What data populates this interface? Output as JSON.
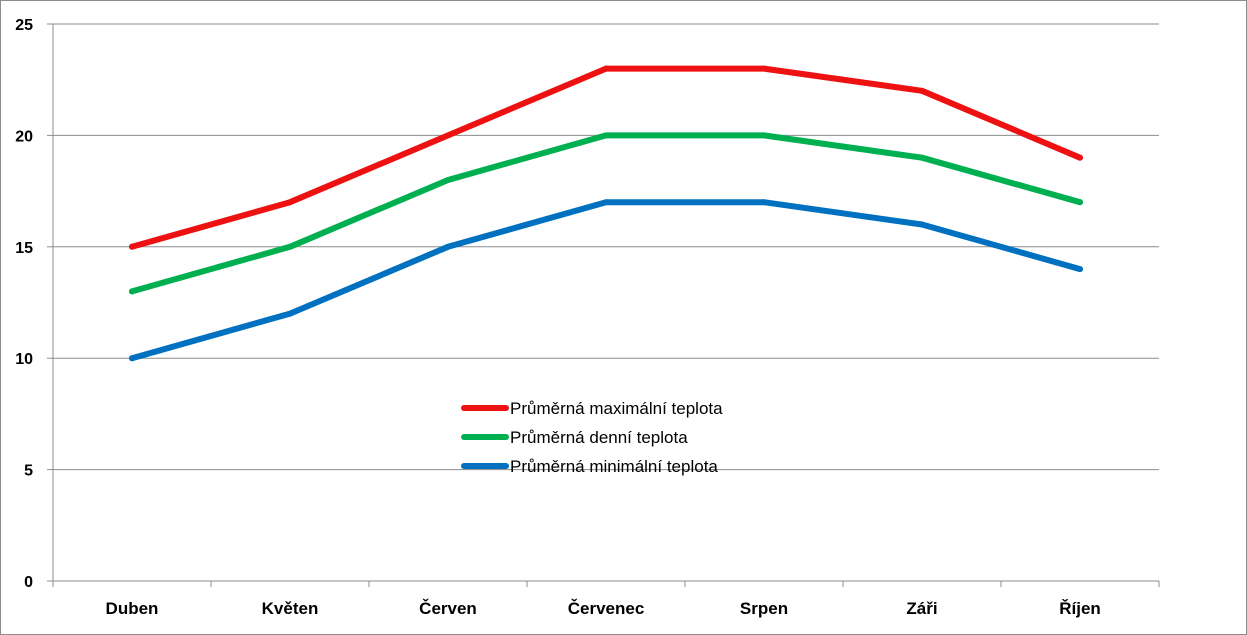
{
  "chart_data": {
    "type": "line",
    "title": "",
    "xlabel": "",
    "ylabel": "",
    "categories": [
      "Duben",
      "Květen",
      "Červen",
      "Červenec",
      "Srpen",
      "Záři",
      "Říjen"
    ],
    "ylim": [
      0,
      25
    ],
    "yticks": [
      "0",
      "5",
      "10",
      "15",
      "20",
      "25"
    ],
    "grid": true,
    "legend_position": "center",
    "series": [
      {
        "name": "Průměrná maximální teplota",
        "color": "#ee1111",
        "values": [
          15,
          17,
          20,
          23,
          23,
          22,
          19
        ]
      },
      {
        "name": "Průměrná denní teplota",
        "color": "#00b050",
        "values": [
          13,
          15,
          18,
          20,
          20,
          19,
          17
        ]
      },
      {
        "name": "Průměrná minimální teplota",
        "color": "#0070c0",
        "values": [
          10,
          12,
          15,
          17,
          17,
          16,
          14
        ]
      }
    ]
  }
}
